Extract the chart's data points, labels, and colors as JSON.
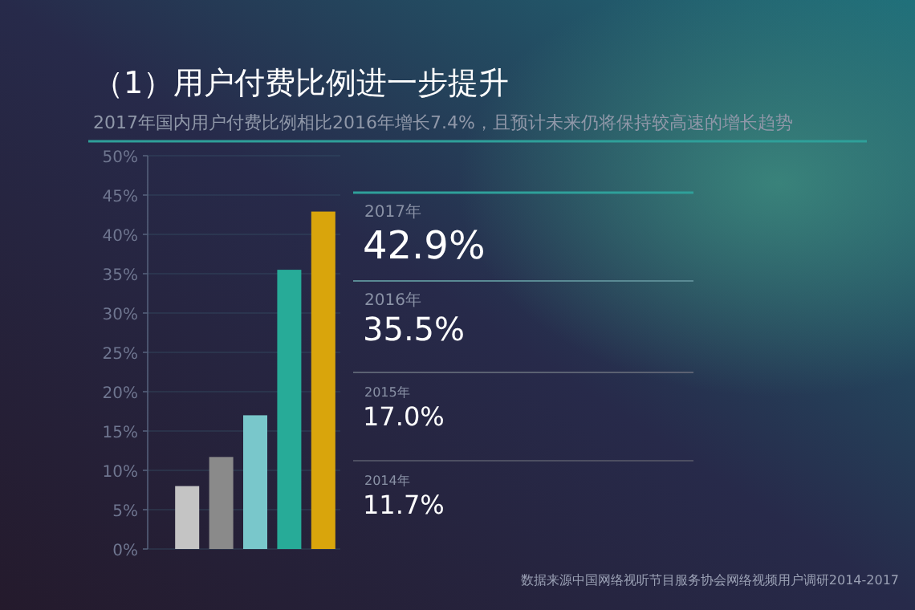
{
  "chart_data": {
    "type": "bar",
    "title": "（1）用户付费比例进一步提升",
    "subtitle": "2017年国内用户付费比例相比2016年增长7.4%，且预计未来仍将保持较高速的增长趋势",
    "categories": [
      null,
      null,
      null,
      null,
      null
    ],
    "values": [
      8.0,
      11.7,
      17.0,
      35.5,
      42.9
    ],
    "colors": [
      "#c4c4c4",
      "#8a8a8a",
      "#79c7cb",
      "#27ab98",
      "#d9a50c"
    ],
    "ylim": [
      0,
      50
    ],
    "yticks": [
      {
        "value": 0,
        "label": "0%"
      },
      {
        "value": 5,
        "label": "5%"
      },
      {
        "value": 10,
        "label": "10%"
      },
      {
        "value": 15,
        "label": "15%"
      },
      {
        "value": 20,
        "label": "20%"
      },
      {
        "value": 25,
        "label": "25%"
      },
      {
        "value": 30,
        "label": "30%"
      },
      {
        "value": 35,
        "label": "35%"
      },
      {
        "value": 40,
        "label": "40%"
      },
      {
        "value": 45,
        "label": "45%"
      },
      {
        "value": 50,
        "label": "50%"
      }
    ],
    "grid": "y",
    "annotations": [
      "2017年",
      "42.9%",
      "2016年",
      "35.5%",
      "2015年",
      "17.0%",
      "2014年",
      "11.7%",
      "数据来源中国网络视听节目服务协会网络视频用户调研2014-2017"
    ]
  }
}
